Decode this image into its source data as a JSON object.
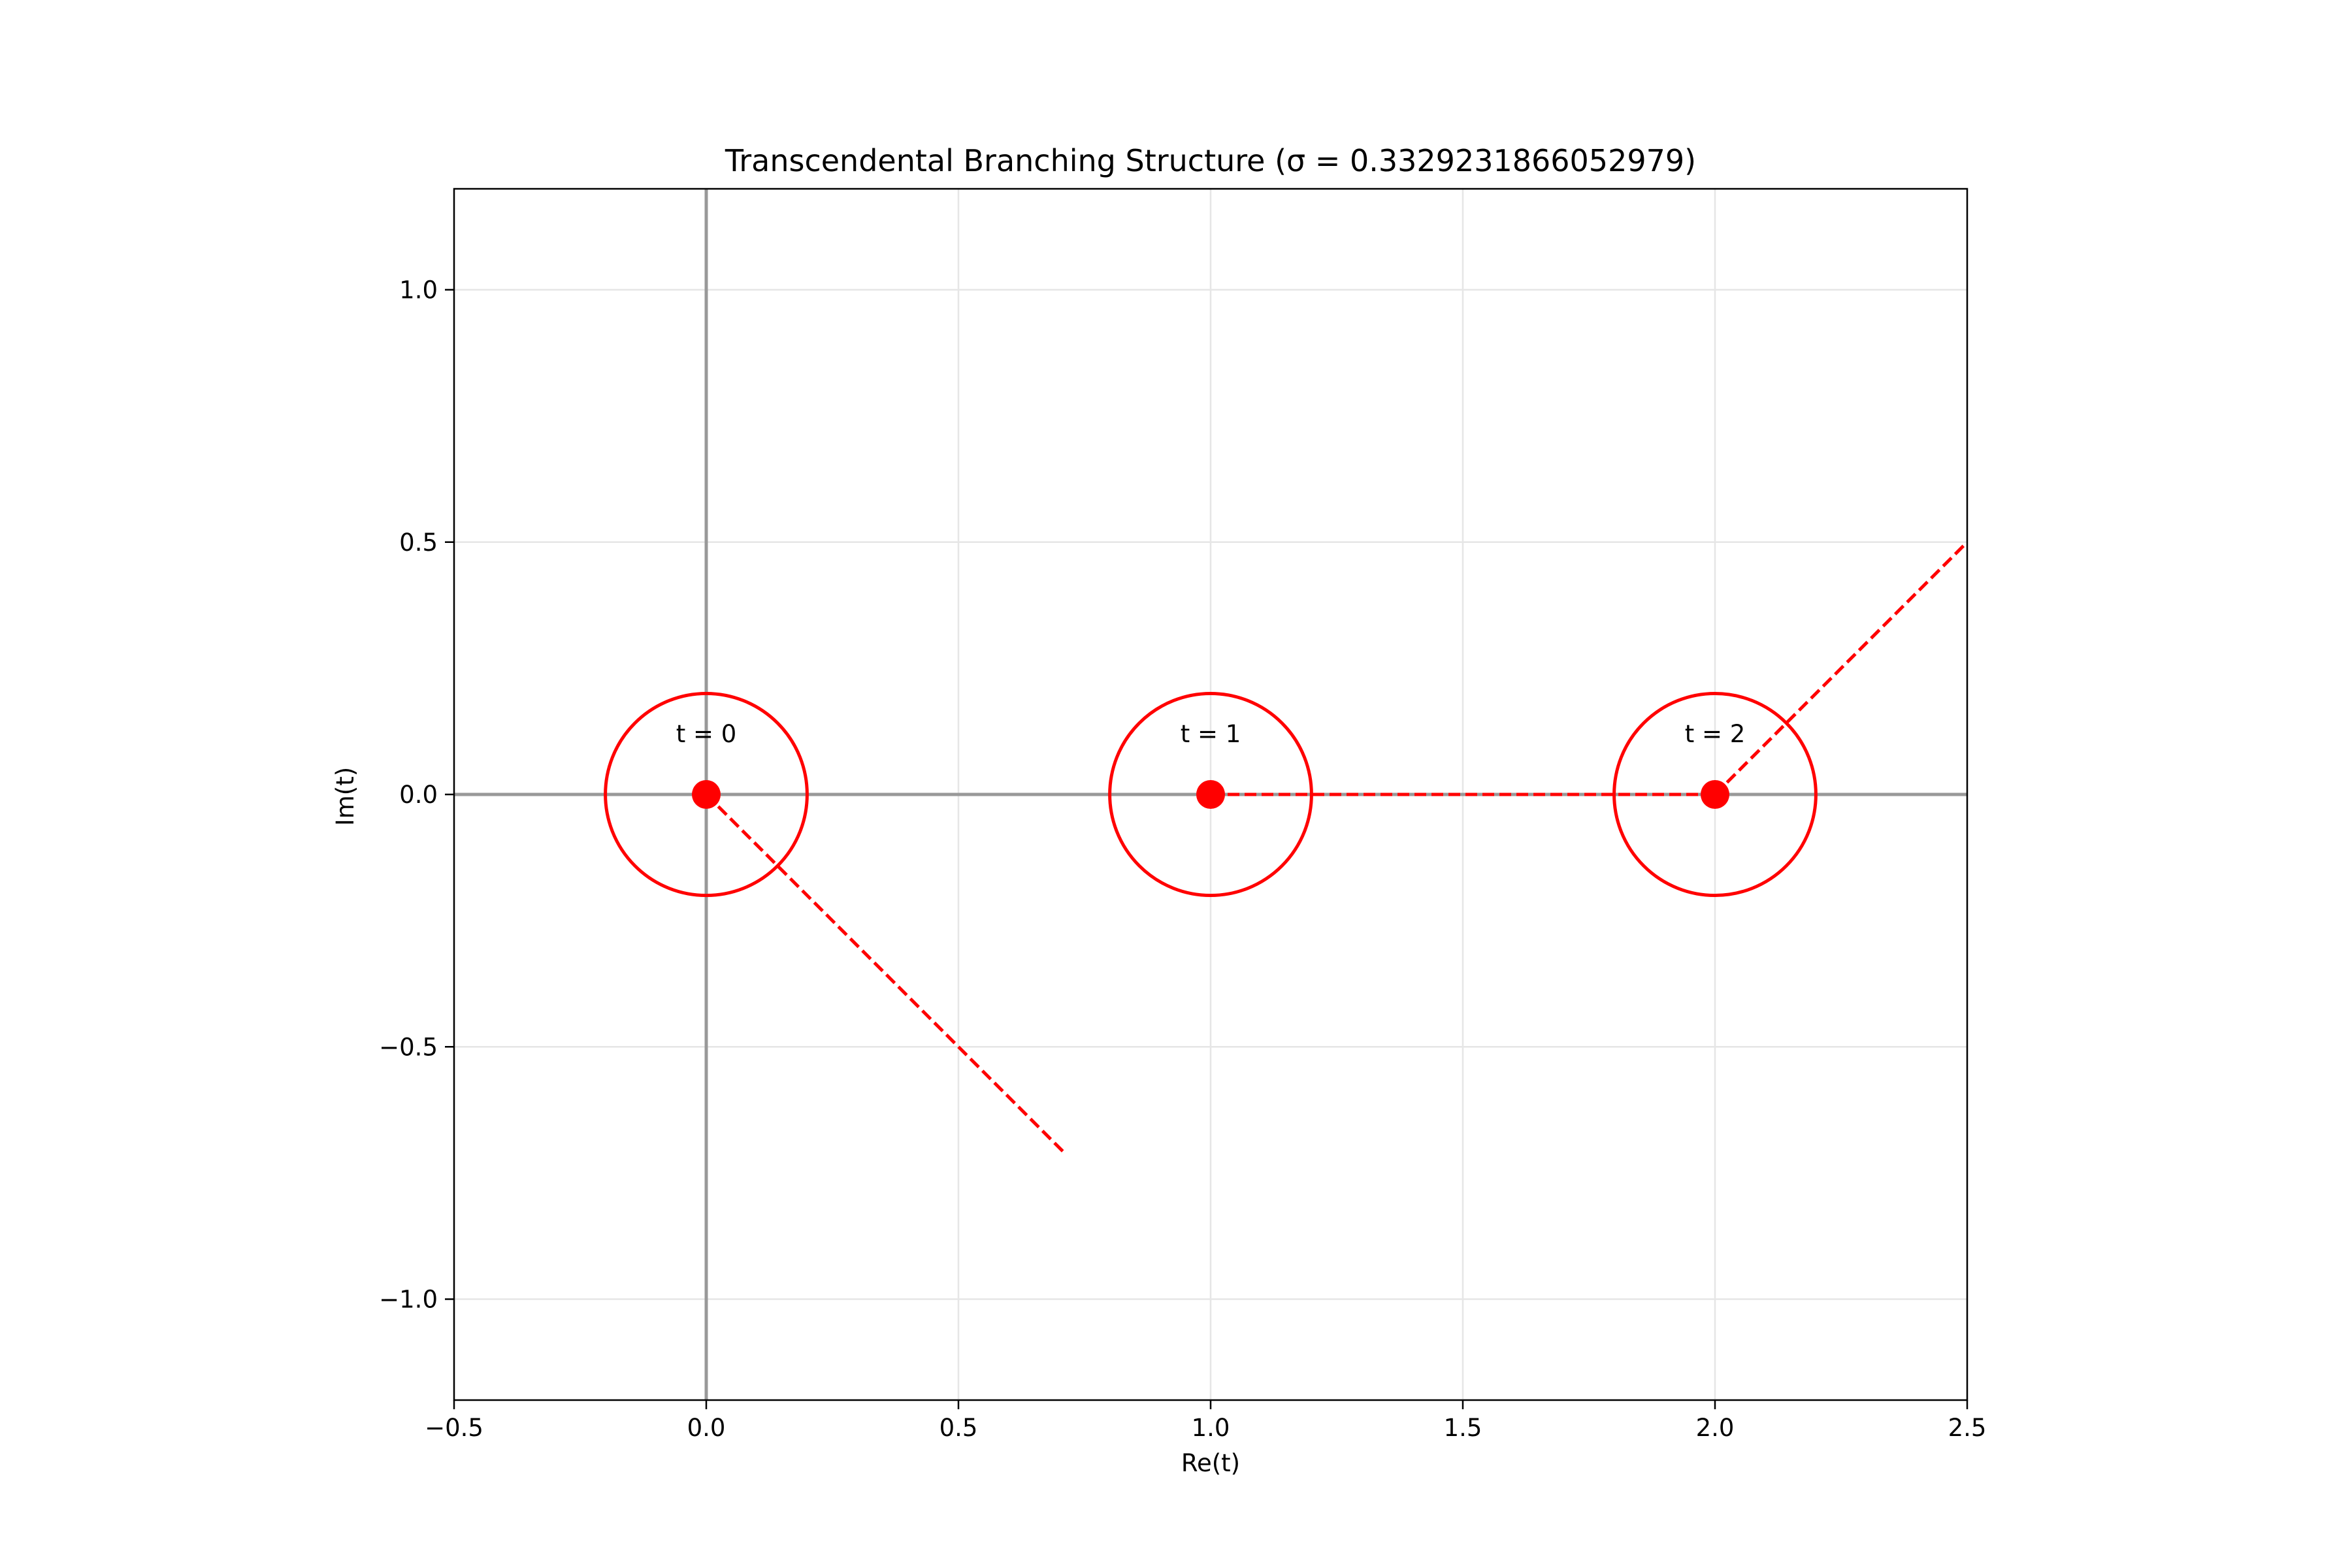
{
  "chart_data": {
    "type": "scatter",
    "title": "Transcendental Branching Structure (σ = 0.3329231866052979)",
    "xlabel": "Re(t)",
    "ylabel": "Im(t)",
    "xlim": [
      -0.5,
      2.5
    ],
    "ylim": [
      -1.2,
      1.2
    ],
    "xticks": [
      -0.5,
      0.0,
      0.5,
      1.0,
      1.5,
      2.0,
      2.5
    ],
    "xtick_labels": [
      "−0.5",
      "0.0",
      "0.5",
      "1.0",
      "1.5",
      "2.0",
      "2.5"
    ],
    "yticks": [
      -1.0,
      -0.5,
      0.0,
      0.5,
      1.0
    ],
    "ytick_labels": [
      "−1.0",
      "−0.5",
      "0.0",
      "0.5",
      "1.0"
    ],
    "grid": true,
    "reference_lines": {
      "x": 0,
      "y": 0
    },
    "points": [
      {
        "x": 0,
        "y": 0,
        "label": "t = 0"
      },
      {
        "x": 1,
        "y": 0,
        "label": "t = 1"
      },
      {
        "x": 2,
        "y": 0,
        "label": "t = 2"
      }
    ],
    "circles": [
      {
        "cx": 0,
        "cy": 0,
        "r": 0.2
      },
      {
        "cx": 1,
        "cy": 0,
        "r": 0.2
      },
      {
        "cx": 2,
        "cy": 0,
        "r": 0.2
      }
    ],
    "branch_cuts": [
      {
        "from": [
          0,
          0
        ],
        "to": [
          0.707,
          -0.707
        ]
      },
      {
        "from": [
          1,
          0
        ],
        "to": [
          2,
          0
        ]
      },
      {
        "from": [
          2,
          0
        ],
        "to": [
          2.5,
          0.5
        ]
      }
    ],
    "colors": {
      "marks": "#ff0000",
      "grid": "#e6e6e6",
      "reference": "#999999"
    }
  }
}
